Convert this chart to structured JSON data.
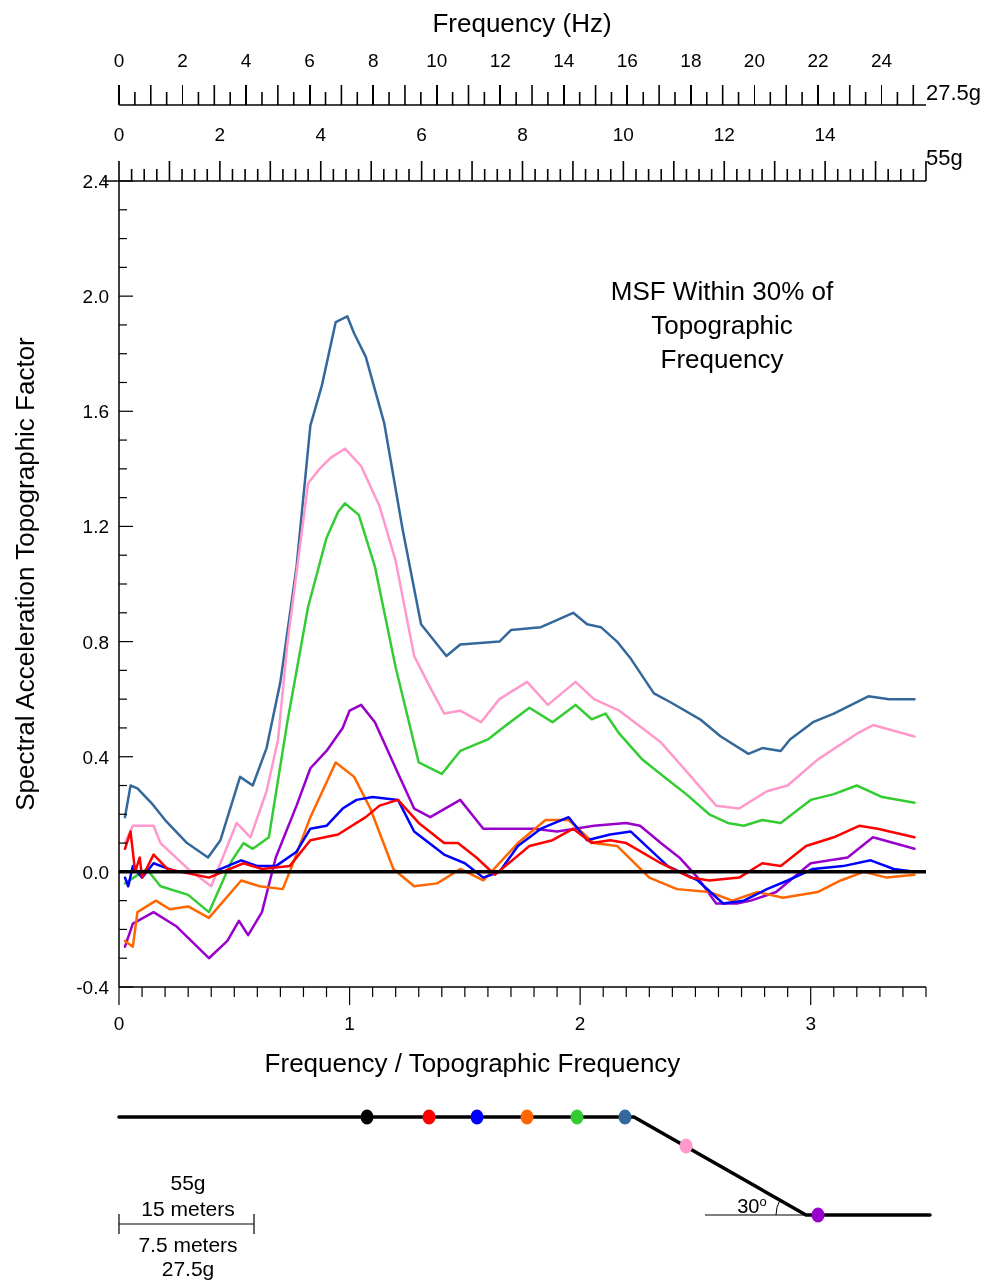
{
  "chart_data": {
    "type": "line",
    "xlabel": "Frequency / Topographic Frequency",
    "ylabel": "Spectral Acceleration Topographic Factor",
    "x2label": "Frequency (Hz)",
    "xlim": [
      0,
      3.5
    ],
    "ylim": [
      -0.4,
      2.4
    ],
    "x2lim": [
      0,
      25.4
    ],
    "xticks": [
      0,
      {
        "value": 0.1,
        "label": null
      },
      {
        "value": 0.2,
        "label": null
      },
      {
        "value": 0.3,
        "label": null
      },
      {
        "value": 0.4,
        "label": null
      },
      {
        "value": 0.5,
        "label": null
      },
      {
        "value": 0.6,
        "label": null
      },
      {
        "value": 0.7,
        "label": null
      },
      {
        "value": 0.8,
        "label": null
      },
      {
        "value": 0.9,
        "label": null
      },
      1,
      {
        "value": 1.1,
        "label": null
      },
      {
        "value": 1.2,
        "label": null
      },
      {
        "value": 1.3,
        "label": null
      },
      {
        "value": 1.4,
        "label": null
      },
      {
        "value": 1.5,
        "label": null
      },
      {
        "value": 1.6,
        "label": null
      },
      {
        "value": 1.7,
        "label": null
      },
      {
        "value": 1.8,
        "label": null
      },
      {
        "value": 1.9,
        "label": null
      },
      2,
      {
        "value": 2.1,
        "label": null
      },
      {
        "value": 2.2,
        "label": null
      },
      {
        "value": 2.3,
        "label": null
      },
      {
        "value": 2.4,
        "label": null
      },
      {
        "value": 2.5,
        "label": null
      },
      {
        "value": 2.6,
        "label": null
      },
      {
        "value": 2.7,
        "label": null
      },
      {
        "value": 2.8,
        "label": null
      },
      {
        "value": 2.9,
        "label": null
      },
      3,
      {
        "value": 3.1,
        "label": null
      },
      {
        "value": 3.2,
        "label": null
      },
      {
        "value": 3.3,
        "label": null
      },
      {
        "value": 3.4,
        "label": null
      },
      {
        "value": 3.5,
        "label": null
      }
    ],
    "yticks": [
      {
        "value": -0.4,
        "label": "-0.4"
      },
      {
        "value": -0.3,
        "label": null
      },
      {
        "value": -0.2,
        "label": null
      },
      {
        "value": -0.1,
        "label": null
      },
      {
        "value": 0,
        "label": "0.0"
      },
      {
        "value": 0.1,
        "label": null
      },
      {
        "value": 0.2,
        "label": null
      },
      {
        "value": 0.3,
        "label": null
      },
      0.4,
      {
        "value": 0.5,
        "label": null
      },
      {
        "value": 0.6,
        "label": null
      },
      {
        "value": 0.7,
        "label": null
      },
      0.8,
      {
        "value": 0.9,
        "label": null
      },
      {
        "value": 1.0,
        "label": null
      },
      {
        "value": 1.1,
        "label": null
      },
      1.2,
      {
        "value": 1.3,
        "label": null
      },
      {
        "value": 1.4,
        "label": null
      },
      {
        "value": 1.5,
        "label": null
      },
      1.6,
      {
        "value": 1.7,
        "label": null
      },
      {
        "value": 1.8,
        "label": null
      },
      {
        "value": 1.9,
        "label": null
      },
      {
        "value": 2,
        "label": "2.0"
      },
      {
        "value": 2.1,
        "label": null
      },
      {
        "value": 2.2,
        "label": null
      },
      {
        "value": 2.3,
        "label": null
      },
      2.4
    ],
    "x2ticks": [
      0,
      2,
      4,
      6,
      8,
      10,
      12,
      14,
      16,
      18,
      20,
      22,
      24
    ],
    "grid": false,
    "legend": false,
    "marker": "none",
    "line_style": "solid",
    "ref_lines": [
      {
        "axis": "y",
        "value": 0,
        "color": "#000000"
      }
    ],
    "annotations": [
      "MSF Within 30% of Topographic Frequency",
      "27.5g",
      "55g",
      "0",
      "2",
      "4",
      "6",
      "8",
      "10",
      "12",
      "14",
      "55g",
      "15 meters",
      "7.5 meters",
      "27.5g",
      "30$^{o}$"
    ],
    "series": [
      {
        "color": "#35689a",
        "x": [
          0.026,
          0.05,
          0.08,
          0.14,
          0.2,
          0.295,
          0.386,
          0.44,
          0.525,
          0.58,
          0.64,
          0.7,
          0.77,
          0.83,
          0.88,
          0.94,
          0.99,
          1.02,
          1.07,
          1.15,
          1.23,
          1.31,
          1.42,
          1.48,
          1.65,
          1.7,
          1.83,
          1.97,
          2.03,
          2.09,
          2.16,
          2.22,
          2.32,
          2.39,
          2.52,
          2.61,
          2.73,
          2.79,
          2.87,
          2.91,
          3.01,
          3.1,
          3.25,
          3.34,
          3.45
        ],
        "values": [
          0.19,
          0.3,
          0.29,
          0.24,
          0.18,
          0.1,
          0.05,
          0.11,
          0.33,
          0.3,
          0.43,
          0.66,
          1.06,
          1.55,
          1.69,
          1.91,
          1.93,
          1.87,
          1.79,
          1.56,
          1.19,
          0.86,
          0.75,
          0.79,
          0.8,
          0.84,
          0.85,
          0.9,
          0.86,
          0.85,
          0.8,
          0.74,
          0.62,
          0.59,
          0.53,
          0.47,
          0.41,
          0.43,
          0.42,
          0.46,
          0.52,
          0.55,
          0.61,
          0.6,
          0.6
        ]
      },
      {
        "color": "#ff99cc",
        "x": [
          0.026,
          0.06,
          0.15,
          0.18,
          0.3,
          0.4,
          0.51,
          0.57,
          0.64,
          0.69,
          0.73,
          0.82,
          0.87,
          0.92,
          0.98,
          1.05,
          1.13,
          1.2,
          1.28,
          1.35,
          1.41,
          1.48,
          1.57,
          1.65,
          1.77,
          1.86,
          1.98,
          2.06,
          2.17,
          2.35,
          2.46,
          2.59,
          2.69,
          2.81,
          2.9,
          3.03,
          3.2,
          3.27,
          3.45
        ],
        "values": [
          0.1,
          0.16,
          0.16,
          0.1,
          0.01,
          -0.05,
          0.17,
          0.12,
          0.28,
          0.46,
          0.79,
          1.35,
          1.4,
          1.44,
          1.47,
          1.41,
          1.27,
          1.08,
          0.75,
          0.64,
          0.55,
          0.56,
          0.52,
          0.6,
          0.66,
          0.58,
          0.66,
          0.6,
          0.56,
          0.45,
          0.35,
          0.23,
          0.22,
          0.28,
          0.3,
          0.39,
          0.48,
          0.51,
          0.47
        ]
      },
      {
        "color": "#33cc33",
        "x": [
          0.026,
          0.12,
          0.18,
          0.3,
          0.39,
          0.49,
          0.54,
          0.58,
          0.65,
          0.73,
          0.82,
          0.9,
          0.95,
          0.98,
          1.04,
          1.11,
          1.2,
          1.3,
          1.4,
          1.48,
          1.6,
          1.68,
          1.78,
          1.88,
          1.98,
          2.05,
          2.11,
          2.17,
          2.27,
          2.38,
          2.46,
          2.56,
          2.64,
          2.71,
          2.79,
          2.87,
          3.0,
          3.1,
          3.2,
          3.31,
          3.45
        ],
        "values": [
          -0.04,
          0.01,
          -0.05,
          -0.08,
          -0.14,
          0.04,
          0.1,
          0.08,
          0.12,
          0.52,
          0.92,
          1.16,
          1.25,
          1.28,
          1.24,
          1.06,
          0.71,
          0.38,
          0.34,
          0.42,
          0.46,
          0.51,
          0.57,
          0.52,
          0.58,
          0.53,
          0.55,
          0.48,
          0.39,
          0.32,
          0.27,
          0.2,
          0.17,
          0.16,
          0.18,
          0.17,
          0.25,
          0.27,
          0.3,
          0.26,
          0.24
        ]
      },
      {
        "color": "#9900cc",
        "x": [
          0.026,
          0.06,
          0.15,
          0.25,
          0.39,
          0.47,
          0.52,
          0.56,
          0.62,
          0.68,
          0.77,
          0.83,
          0.9,
          0.97,
          1.0,
          1.05,
          1.11,
          1.2,
          1.28,
          1.35,
          1.48,
          1.58,
          1.73,
          1.8,
          1.9,
          2.06,
          2.2,
          2.26,
          2.35,
          2.43,
          2.51,
          2.59,
          2.68,
          2.74,
          2.85,
          3.0,
          3.16,
          3.27,
          3.45
        ],
        "values": [
          -0.26,
          -0.18,
          -0.14,
          -0.19,
          -0.3,
          -0.24,
          -0.17,
          -0.22,
          -0.14,
          0.05,
          0.23,
          0.36,
          0.42,
          0.5,
          0.56,
          0.58,
          0.52,
          0.36,
          0.22,
          0.19,
          0.25,
          0.15,
          0.15,
          0.15,
          0.14,
          0.16,
          0.17,
          0.16,
          0.1,
          0.05,
          -0.02,
          -0.11,
          -0.11,
          -0.1,
          -0.07,
          0.03,
          0.05,
          0.12,
          0.08
        ]
      },
      {
        "color": "#ff6600",
        "x": [
          0.026,
          0.06,
          0.08,
          0.16,
          0.22,
          0.3,
          0.39,
          0.53,
          0.61,
          0.71,
          0.75,
          0.83,
          0.94,
          1.02,
          1.09,
          1.19,
          1.28,
          1.38,
          1.48,
          1.58,
          1.73,
          1.85,
          1.95,
          2.06,
          2.16,
          2.3,
          2.42,
          2.56,
          2.66,
          2.77,
          2.88,
          3.03,
          3.13,
          3.23,
          3.33,
          3.45
        ],
        "values": [
          -0.24,
          -0.26,
          -0.14,
          -0.1,
          -0.13,
          -0.12,
          -0.16,
          -0.03,
          -0.05,
          -0.06,
          0.02,
          0.19,
          0.38,
          0.33,
          0.22,
          0.01,
          -0.05,
          -0.04,
          0.01,
          -0.03,
          0.1,
          0.18,
          0.18,
          0.1,
          0.09,
          -0.02,
          -0.06,
          -0.07,
          -0.1,
          -0.07,
          -0.09,
          -0.07,
          -0.03,
          0.0,
          -0.02,
          -0.01
        ]
      },
      {
        "color": "#0000ff",
        "x": [
          0.026,
          0.04,
          0.06,
          0.1,
          0.15,
          0.25,
          0.41,
          0.53,
          0.6,
          0.68,
          0.77,
          0.83,
          0.9,
          0.97,
          1.03,
          1.1,
          1.21,
          1.28,
          1.41,
          1.5,
          1.58,
          1.65,
          1.73,
          1.83,
          1.95,
          2.03,
          2.13,
          2.22,
          2.38,
          2.51,
          2.62,
          2.71,
          2.81,
          2.9,
          3.01,
          3.14,
          3.26,
          3.36,
          3.45
        ],
        "values": [
          -0.02,
          -0.05,
          0.02,
          -0.02,
          0.03,
          0.0,
          0.0,
          0.04,
          0.02,
          0.02,
          0.07,
          0.15,
          0.16,
          0.22,
          0.25,
          0.26,
          0.25,
          0.14,
          0.06,
          0.03,
          -0.02,
          0.0,
          0.09,
          0.15,
          0.19,
          0.11,
          0.13,
          0.14,
          0.02,
          -0.03,
          -0.11,
          -0.1,
          -0.06,
          -0.03,
          0.01,
          0.02,
          0.04,
          0.01,
          0.0
        ]
      },
      {
        "color": "#ff0000",
        "x": [
          0.026,
          0.05,
          0.07,
          0.09,
          0.1,
          0.15,
          0.21,
          0.39,
          0.54,
          0.62,
          0.74,
          0.83,
          0.95,
          1.07,
          1.13,
          1.21,
          1.3,
          1.41,
          1.47,
          1.55,
          1.63,
          1.78,
          1.88,
          1.97,
          2.05,
          2.13,
          2.2,
          2.35,
          2.48,
          2.56,
          2.69,
          2.79,
          2.87,
          2.98,
          3.1,
          3.21,
          3.29,
          3.45
        ],
        "values": [
          0.08,
          0.14,
          0.0,
          0.05,
          -0.02,
          0.06,
          0.01,
          -0.02,
          0.03,
          0.01,
          0.02,
          0.11,
          0.13,
          0.19,
          0.23,
          0.25,
          0.17,
          0.1,
          0.1,
          0.05,
          -0.01,
          0.09,
          0.11,
          0.15,
          0.1,
          0.11,
          0.1,
          0.03,
          -0.02,
          -0.03,
          -0.02,
          0.03,
          0.02,
          0.09,
          0.12,
          0.16,
          0.15,
          0.12
        ]
      }
    ]
  }
}
